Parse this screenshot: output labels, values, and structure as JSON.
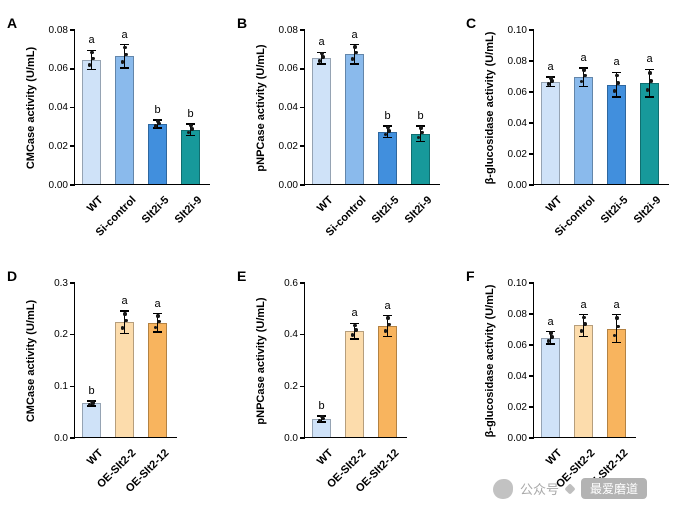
{
  "chart_data": [
    {
      "type": "bar",
      "panel": "A",
      "ylabel": "CMCase activity (U/mL)",
      "ylim": [
        0,
        0.08
      ],
      "yticks": [
        "0.00",
        "0.02",
        "0.04",
        "0.06",
        "0.08"
      ],
      "categories": [
        "WT",
        "Si-control",
        "Slt2i-5",
        "Slt2i-9"
      ],
      "values": [
        0.064,
        0.066,
        0.031,
        0.028
      ],
      "errors": [
        0.005,
        0.006,
        0.002,
        0.003
      ],
      "sig_letters": [
        "a",
        "a",
        "b",
        "b"
      ],
      "colors": [
        "#cfe2f8",
        "#8abaec",
        "#418fdd",
        "#17999b"
      ]
    },
    {
      "type": "bar",
      "panel": "B",
      "ylabel": "pNPCase activity (U/mL)",
      "ylim": [
        0,
        0.08
      ],
      "yticks": [
        "0.00",
        "0.02",
        "0.04",
        "0.06",
        "0.08"
      ],
      "categories": [
        "WT",
        "Si-control",
        "Slt2i-5",
        "Slt2i-9"
      ],
      "values": [
        0.065,
        0.067,
        0.027,
        0.026
      ],
      "errors": [
        0.003,
        0.005,
        0.003,
        0.004
      ],
      "sig_letters": [
        "a",
        "a",
        "b",
        "b"
      ],
      "colors": [
        "#cfe2f8",
        "#8abaec",
        "#418fdd",
        "#17999b"
      ]
    },
    {
      "type": "bar",
      "panel": "C",
      "ylabel": "β-glucosidase activity (U/mL)",
      "ylim": [
        0,
        0.1
      ],
      "yticks": [
        "0.00",
        "0.02",
        "0.04",
        "0.06",
        "0.08",
        "0.10"
      ],
      "categories": [
        "WT",
        "Si-control",
        "Slt2i-5",
        "Slt2i-9"
      ],
      "values": [
        0.066,
        0.069,
        0.064,
        0.065
      ],
      "errors": [
        0.003,
        0.006,
        0.008,
        0.009
      ],
      "sig_letters": [
        "a",
        "a",
        "a",
        "a"
      ],
      "colors": [
        "#cfe2f8",
        "#8abaec",
        "#418fdd",
        "#17999b"
      ]
    },
    {
      "type": "bar",
      "panel": "D",
      "ylabel": "CMCase activity (U/mL)",
      "ylim": [
        0,
        0.3
      ],
      "yticks": [
        "0.0",
        "0.1",
        "0.2",
        "0.3"
      ],
      "categories": [
        "WT",
        "OE-Slt2-2",
        "OE-Slt2-12"
      ],
      "values": [
        0.065,
        0.222,
        0.221
      ],
      "errors": [
        0.005,
        0.022,
        0.018
      ],
      "sig_letters": [
        "b",
        "a",
        "a"
      ],
      "colors": [
        "#cfe2f8",
        "#fcdcac",
        "#f8b45e"
      ]
    },
    {
      "type": "bar",
      "panel": "E",
      "ylabel": "pNPCase activity (U/mL)",
      "ylim": [
        0,
        0.6
      ],
      "yticks": [
        "0.0",
        "0.2",
        "0.4",
        "0.6"
      ],
      "categories": [
        "WT",
        "OE-Slt2-2",
        "OE-Slt2-12"
      ],
      "values": [
        0.07,
        0.41,
        0.43
      ],
      "errors": [
        0.012,
        0.03,
        0.04
      ],
      "sig_letters": [
        "b",
        "a",
        "a"
      ],
      "colors": [
        "#cfe2f8",
        "#fcdcac",
        "#f8b45e"
      ]
    },
    {
      "type": "bar",
      "panel": "F",
      "ylabel": "β-glucosidase activity (U/mL)",
      "ylim": [
        0,
        0.1
      ],
      "yticks": [
        "0.00",
        "0.02",
        "0.04",
        "0.06",
        "0.08",
        "0.10"
      ],
      "categories": [
        "WT",
        "OE-Slt2-2",
        "OE-Slt2-12"
      ],
      "values": [
        0.064,
        0.072,
        0.07
      ],
      "errors": [
        0.004,
        0.007,
        0.009
      ],
      "sig_letters": [
        "a",
        "a",
        "a"
      ],
      "colors": [
        "#cfe2f8",
        "#fcdcac",
        "#f8b45e"
      ]
    }
  ],
  "watermark": {
    "prefix": "公众号",
    "name": "最爱磨道"
  }
}
